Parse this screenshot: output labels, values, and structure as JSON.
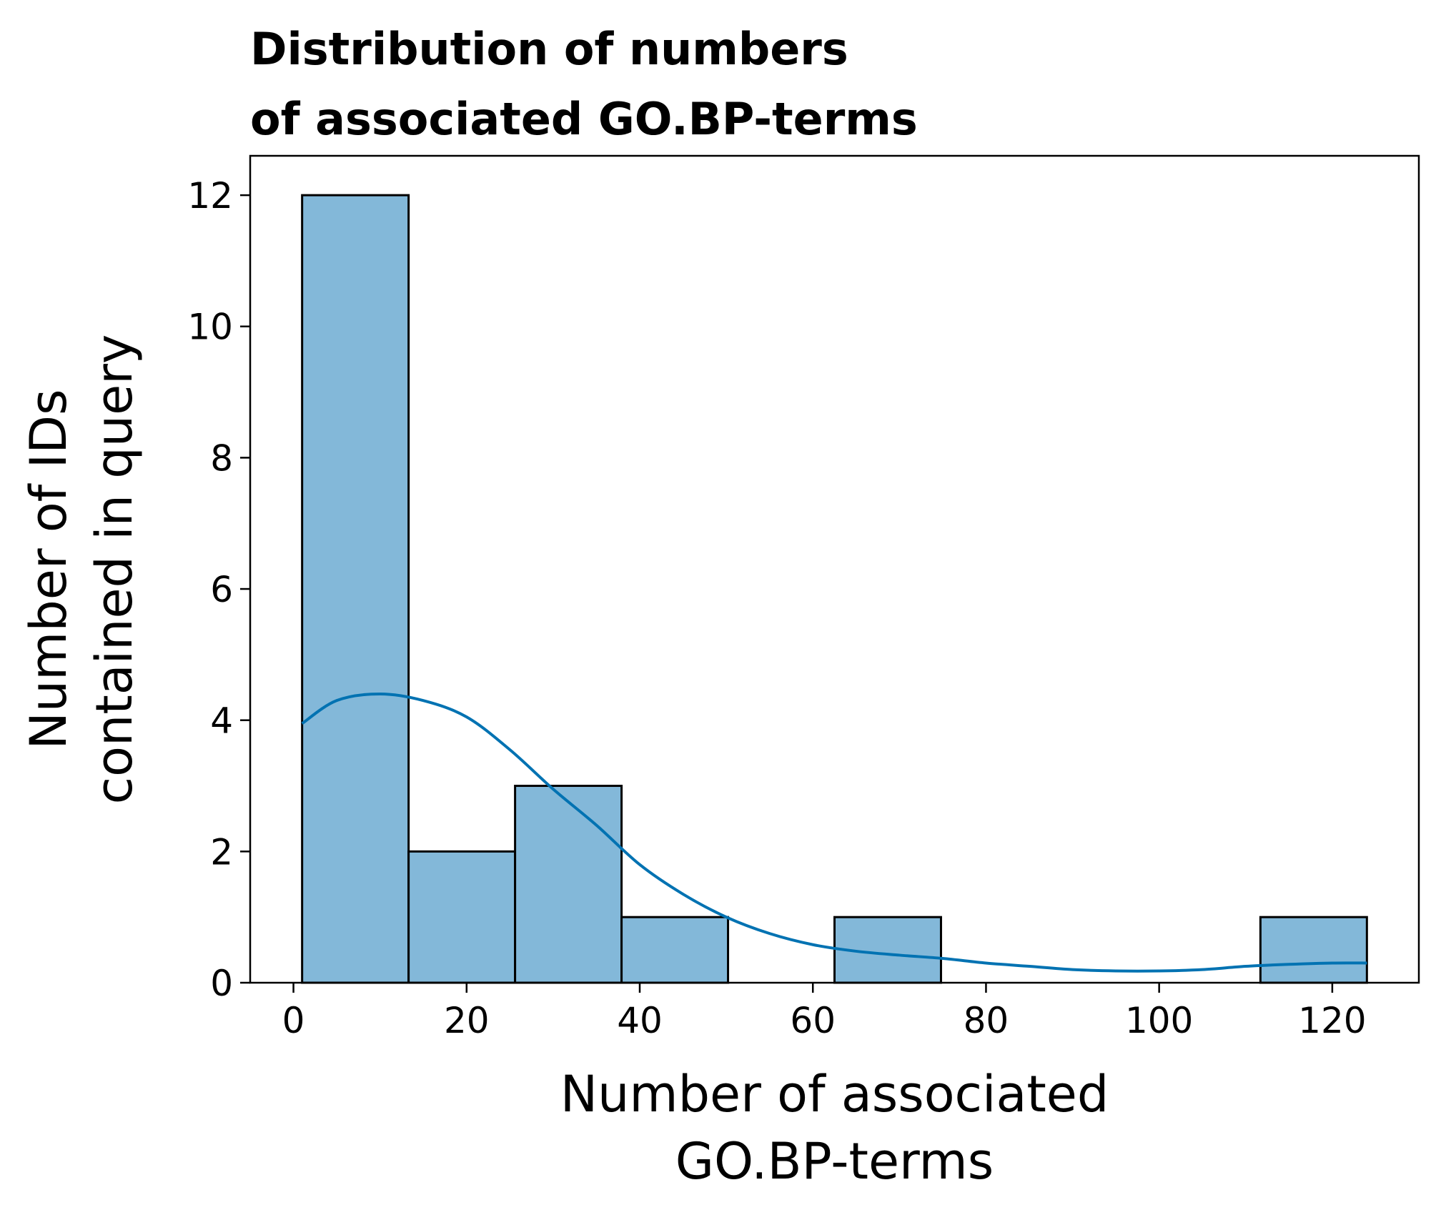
{
  "chart_data": {
    "type": "bar",
    "subtype": "histogram",
    "title": [
      "Distribution of numbers",
      "of associated GO.BP-terms"
    ],
    "xlabel": [
      "Number of associated",
      "GO.BP-terms"
    ],
    "ylabel": [
      "Number of IDs",
      "contained in query"
    ],
    "xlim": [
      -5,
      130
    ],
    "ylim": [
      0,
      12.6
    ],
    "xticks": [
      0,
      20,
      40,
      60,
      80,
      100,
      120
    ],
    "yticks": [
      0,
      2,
      4,
      6,
      8,
      10,
      12
    ],
    "bins": [
      {
        "x0": 1.0,
        "x1": 13.3,
        "count": 12
      },
      {
        "x0": 13.3,
        "x1": 25.6,
        "count": 2
      },
      {
        "x0": 25.6,
        "x1": 37.9,
        "count": 3
      },
      {
        "x0": 37.9,
        "x1": 50.2,
        "count": 1
      },
      {
        "x0": 50.2,
        "x1": 62.5,
        "count": 0
      },
      {
        "x0": 62.5,
        "x1": 74.8,
        "count": 1
      },
      {
        "x0": 74.8,
        "x1": 87.1,
        "count": 0
      },
      {
        "x0": 87.1,
        "x1": 99.4,
        "count": 0
      },
      {
        "x0": 99.4,
        "x1": 111.7,
        "count": 0
      },
      {
        "x0": 111.7,
        "x1": 124.0,
        "count": 1
      }
    ],
    "kde": {
      "x": [
        1,
        5,
        10,
        15,
        20,
        25,
        30,
        35,
        40,
        45,
        50,
        55,
        60,
        65,
        70,
        75,
        80,
        85,
        90,
        95,
        100,
        105,
        110,
        115,
        120,
        124
      ],
      "y": [
        3.95,
        4.3,
        4.4,
        4.3,
        4.05,
        3.55,
        2.95,
        2.4,
        1.8,
        1.35,
        1.0,
        0.75,
        0.58,
        0.48,
        0.42,
        0.37,
        0.3,
        0.25,
        0.2,
        0.18,
        0.18,
        0.2,
        0.25,
        0.28,
        0.3,
        0.3
      ]
    },
    "grid": false,
    "legend": "none",
    "colors": {
      "bar_fill": "#83b8d9",
      "bar_edge": "#000000",
      "kde_line": "#0072b2"
    }
  }
}
